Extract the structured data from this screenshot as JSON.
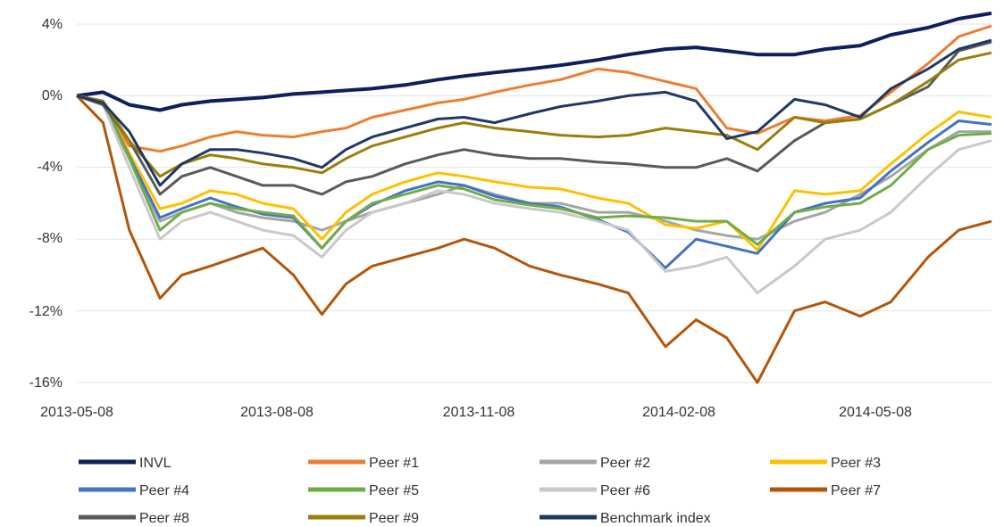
{
  "chart_data": {
    "type": "line",
    "title": "",
    "xlabel": "",
    "ylabel": "",
    "x_ticks": [
      "2013-05-08",
      "2013-08-08",
      "2013-11-08",
      "2014-02-08",
      "2014-05-08"
    ],
    "y_ticks": [
      "4%",
      "0%",
      "-4%",
      "-8%",
      "-12%",
      "-16%"
    ],
    "ylim": [
      -16,
      4
    ],
    "y_unit": "%",
    "grid": "horizontal",
    "legend_position": "bottom",
    "x": [
      "2013-05-08",
      "2013-05-20",
      "2013-06-01",
      "2013-06-15",
      "2013-06-25",
      "2013-07-08",
      "2013-07-20",
      "2013-08-01",
      "2013-08-15",
      "2013-08-28",
      "2013-09-08",
      "2013-09-20",
      "2013-10-05",
      "2013-10-20",
      "2013-11-01",
      "2013-11-15",
      "2013-12-01",
      "2013-12-15",
      "2014-01-01",
      "2014-01-15",
      "2014-02-01",
      "2014-02-15",
      "2014-03-01",
      "2014-03-15",
      "2014-04-01",
      "2014-04-15",
      "2014-05-01",
      "2014-05-15",
      "2014-06-01",
      "2014-06-15",
      "2014-06-30"
    ],
    "series": [
      {
        "name": "INVL",
        "color": "#0d1f5c",
        "values": [
          0,
          0.2,
          -0.5,
          -0.8,
          -0.5,
          -0.3,
          -0.2,
          -0.1,
          0.1,
          0.2,
          0.3,
          0.4,
          0.6,
          0.9,
          1.1,
          1.3,
          1.5,
          1.7,
          2.0,
          2.3,
          2.6,
          2.7,
          2.5,
          2.3,
          2.3,
          2.6,
          2.8,
          3.4,
          3.8,
          4.3,
          4.6
        ]
      },
      {
        "name": "Peer #1",
        "color": "#ed7d31",
        "values": [
          0,
          -0.5,
          -2.8,
          -3.1,
          -2.8,
          -2.3,
          -2.0,
          -2.2,
          -2.3,
          -2.0,
          -1.8,
          -1.2,
          -0.8,
          -0.4,
          -0.2,
          0.2,
          0.6,
          0.9,
          1.5,
          1.3,
          0.8,
          0.4,
          -1.8,
          -2.1,
          -1.2,
          -1.4,
          -1.1,
          0.2,
          1.8,
          3.3,
          3.9
        ]
      },
      {
        "name": "Peer #2",
        "color": "#a5a5a5",
        "values": [
          0,
          -0.5,
          -3.5,
          -7.0,
          -6.5,
          -6.0,
          -6.5,
          -6.8,
          -7.0,
          -7.5,
          -7.0,
          -6.5,
          -6.0,
          -5.5,
          -5.0,
          -5.5,
          -6.0,
          -6.0,
          -6.5,
          -6.5,
          -7.0,
          -7.5,
          -7.8,
          -8.0,
          -7.0,
          -6.5,
          -5.5,
          -4.5,
          -3.0,
          -2.0,
          -2.0
        ]
      },
      {
        "name": "Peer #3",
        "color": "#ffc000",
        "values": [
          0,
          -0.3,
          -3.2,
          -6.3,
          -6.0,
          -5.3,
          -5.5,
          -6.0,
          -6.3,
          -8.0,
          -6.5,
          -5.5,
          -4.8,
          -4.3,
          -4.5,
          -4.8,
          -5.1,
          -5.2,
          -5.7,
          -6.0,
          -7.2,
          -7.4,
          -7.0,
          -8.6,
          -5.3,
          -5.5,
          -5.3,
          -3.8,
          -2.1,
          -0.9,
          -1.2
        ]
      },
      {
        "name": "Peer #4",
        "color": "#4472c4",
        "values": [
          0,
          -0.3,
          -3.4,
          -6.8,
          -6.3,
          -5.7,
          -6.2,
          -6.6,
          -6.8,
          -8.5,
          -7.0,
          -6.1,
          -5.3,
          -4.8,
          -5.0,
          -5.6,
          -6.0,
          -6.2,
          -6.9,
          -7.6,
          -9.6,
          -8.0,
          -8.4,
          -8.8,
          -6.5,
          -6.0,
          -5.7,
          -4.2,
          -2.6,
          -1.4,
          -1.6
        ]
      },
      {
        "name": "Peer #5",
        "color": "#70ad47",
        "values": [
          0,
          -0.3,
          -3.5,
          -7.5,
          -6.5,
          -6.0,
          -6.3,
          -6.5,
          -6.7,
          -8.5,
          -7.0,
          -6.0,
          -5.5,
          -5.0,
          -5.2,
          -5.8,
          -6.1,
          -6.3,
          -6.8,
          -6.7,
          -6.8,
          -7.0,
          -7.0,
          -8.3,
          -6.5,
          -6.2,
          -6.0,
          -5.0,
          -3.0,
          -2.2,
          -2.1
        ]
      },
      {
        "name": "Peer #6",
        "color": "#c9c9c9",
        "values": [
          0,
          -0.5,
          -4.0,
          -8.0,
          -7.0,
          -6.5,
          -7.0,
          -7.5,
          -7.8,
          -9.0,
          -7.5,
          -6.5,
          -6.0,
          -5.3,
          -5.5,
          -6.0,
          -6.3,
          -6.5,
          -7.0,
          -7.5,
          -9.8,
          -9.5,
          -9.0,
          -11.0,
          -9.5,
          -8.0,
          -7.5,
          -6.5,
          -4.5,
          -3.0,
          -2.5
        ]
      },
      {
        "name": "Peer #7",
        "color": "#b45509",
        "values": [
          0,
          -1.5,
          -7.5,
          -11.3,
          -10.0,
          -9.5,
          -9.0,
          -8.5,
          -10.0,
          -12.2,
          -10.5,
          -9.5,
          -9.0,
          -8.5,
          -8.0,
          -8.5,
          -9.5,
          -10.0,
          -10.5,
          -11.0,
          -14.0,
          -12.5,
          -13.5,
          -16.0,
          -12.0,
          -11.5,
          -12.3,
          -11.5,
          -9.0,
          -7.5,
          -7.0
        ]
      },
      {
        "name": "Peer #8",
        "color": "#5a5a5a",
        "values": [
          0,
          -0.5,
          -2.5,
          -5.5,
          -4.5,
          -4.0,
          -4.5,
          -5.0,
          -5.0,
          -5.5,
          -4.8,
          -4.5,
          -3.8,
          -3.3,
          -3.0,
          -3.3,
          -3.5,
          -3.5,
          -3.7,
          -3.8,
          -4.0,
          -4.0,
          -3.5,
          -4.2,
          -2.5,
          -1.5,
          -1.3,
          -0.5,
          0.5,
          2.5,
          3.0
        ]
      },
      {
        "name": "Peer #9",
        "color": "#9c7d0b",
        "values": [
          0,
          -0.3,
          -2.5,
          -4.5,
          -3.8,
          -3.3,
          -3.5,
          -3.8,
          -4.0,
          -4.3,
          -3.5,
          -2.8,
          -2.3,
          -1.8,
          -1.5,
          -1.8,
          -2.0,
          -2.2,
          -2.3,
          -2.2,
          -1.8,
          -2.0,
          -2.2,
          -3.0,
          -1.2,
          -1.5,
          -1.3,
          -0.5,
          0.8,
          2.0,
          2.4
        ]
      },
      {
        "name": "Benchmark index",
        "color": "#203864",
        "values": [
          0,
          -0.4,
          -2.0,
          -5.0,
          -3.8,
          -3.0,
          -3.0,
          -3.2,
          -3.5,
          -4.0,
          -3.0,
          -2.3,
          -1.8,
          -1.3,
          -1.2,
          -1.5,
          -1.0,
          -0.6,
          -0.3,
          0.0,
          0.2,
          -0.3,
          -2.4,
          -2.0,
          -0.2,
          -0.5,
          -1.2,
          0.4,
          1.5,
          2.6,
          3.1
        ]
      }
    ]
  }
}
